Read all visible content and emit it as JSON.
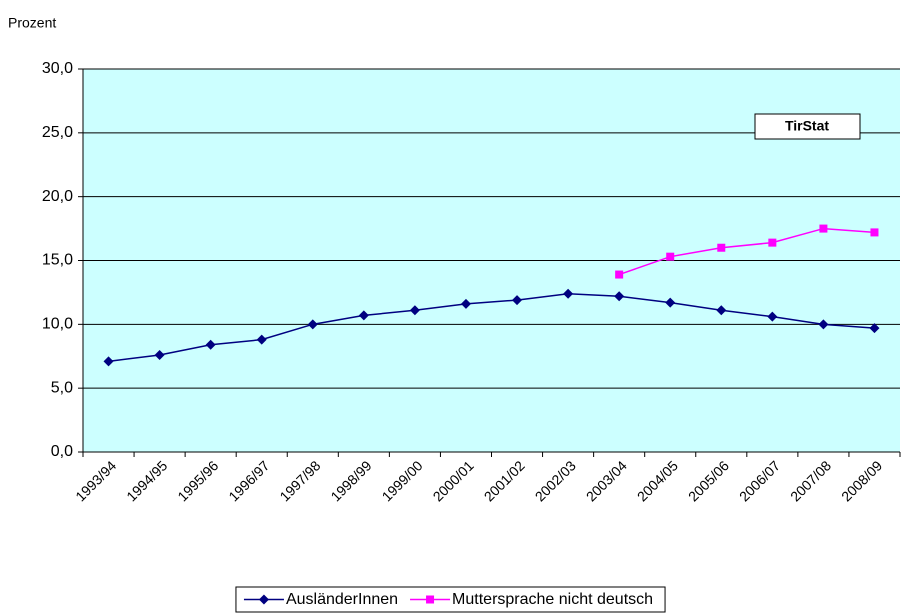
{
  "chart_data": {
    "type": "line",
    "y_label": "Prozent",
    "annotation": "TirStat",
    "categories": [
      "1993/94",
      "1994/95",
      "1995/96",
      "1996/97",
      "1997/98",
      "1998/99",
      "1999/00",
      "2000/01",
      "2001/02",
      "2002/03",
      "2003/04",
      "2004/05",
      "2005/06",
      "2006/07",
      "2007/08",
      "2008/09"
    ],
    "series": [
      {
        "name": "AusländerInnen",
        "color": "#000080",
        "marker": "diamond",
        "values": [
          7.1,
          7.6,
          8.4,
          8.8,
          10.0,
          10.7,
          11.1,
          11.6,
          11.9,
          12.4,
          12.2,
          11.7,
          11.1,
          10.6,
          10.0,
          9.7
        ]
      },
      {
        "name": "Muttersprache nicht deutsch",
        "color": "#ff00ff",
        "marker": "square",
        "values": [
          null,
          null,
          null,
          null,
          null,
          null,
          null,
          null,
          null,
          null,
          13.9,
          15.3,
          16.0,
          16.4,
          17.5,
          17.2
        ]
      }
    ],
    "ylim": [
      0,
      30
    ],
    "yticks": [
      {
        "value": 0,
        "label": "0,0"
      },
      {
        "value": 5,
        "label": "5,0"
      },
      {
        "value": 10,
        "label": "10,0"
      },
      {
        "value": 15,
        "label": "15,0"
      },
      {
        "value": 20,
        "label": "20,0"
      },
      {
        "value": 25,
        "label": "25,0"
      },
      {
        "value": 30,
        "label": "30,0"
      }
    ],
    "grid": true,
    "background": "#ccffff",
    "legend": "bottom"
  }
}
